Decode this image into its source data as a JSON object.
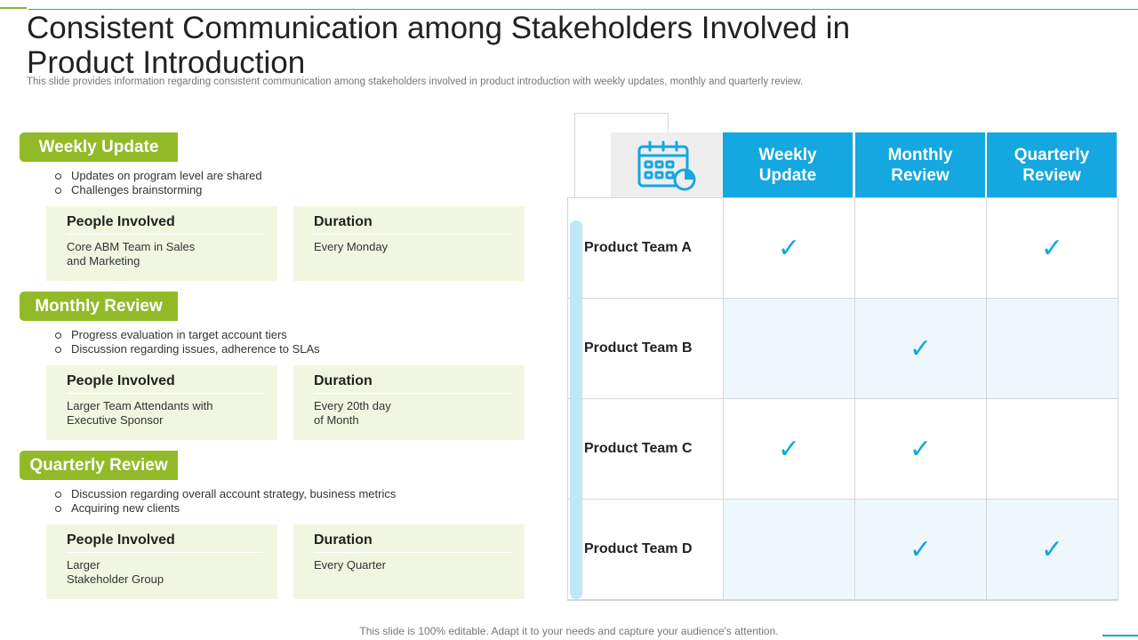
{
  "title": "Consistent Communication among Stakeholders Involved in Product Introduction",
  "subtitle": "This slide provides information regarding consistent communication among stakeholders involved in product introduction with weekly updates, monthly and quarterly review.",
  "sections": [
    {
      "tag": "Weekly Update",
      "bullets": [
        "Updates on program level are shared",
        "Challenges brainstorming"
      ],
      "people_label": "People Involved",
      "people_value": "Core ABM Team in Sales\nand Marketing",
      "duration_label": "Duration",
      "duration_value": "Every Monday"
    },
    {
      "tag": "Monthly Review",
      "bullets": [
        "Progress evaluation  in target account tiers",
        "Discussion regarding  issues, adherence  to SLAs"
      ],
      "people_label": "People Involved",
      "people_value": "Larger Team Attendants with\nExecutive Sponsor",
      "duration_label": "Duration",
      "duration_value": "Every 20th day\nof Month"
    },
    {
      "tag": "Quarterly Review",
      "bullets": [
        "Discussion regarding  overall account strategy, business  metrics",
        "Acquiring new clients"
      ],
      "people_label": "People Involved",
      "people_value": "Larger\nStakeholder Group",
      "duration_label": "Duration",
      "duration_value": "Every Quarter"
    }
  ],
  "table": {
    "icon": "calendar-icon",
    "columns": [
      "Weekly\nUpdate",
      "Monthly\nReview",
      "Quarterly\nReview"
    ],
    "rows": [
      {
        "label": "Product Team A",
        "weekly": true,
        "monthly": false,
        "quarterly": true
      },
      {
        "label": "Product Team B",
        "weekly": false,
        "monthly": true,
        "quarterly": false
      },
      {
        "label": "Product Team C",
        "weekly": true,
        "monthly": true,
        "quarterly": false
      },
      {
        "label": "Product Team D",
        "weekly": false,
        "monthly": true,
        "quarterly": true
      }
    ],
    "check_glyph": "✓"
  },
  "colors": {
    "accent_green": "#92ba28",
    "accent_blue": "#14a7e0",
    "box_tint": "#f1f6e1"
  },
  "footer": "This slide is 100% editable. Adapt it to your needs and capture your audience's attention."
}
